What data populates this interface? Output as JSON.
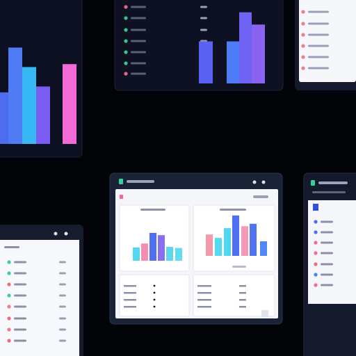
{
  "charts": [
    {
      "type": "bar",
      "values": [
        53,
        99,
        79,
        59,
        82
      ],
      "colors": [
        "#4d6cf0",
        "#4f7bf5",
        "#37b8f2",
        "#7b5cf0",
        "#f26ad6"
      ]
    },
    {
      "type": "bar",
      "values": [
        55,
        55,
        93,
        77
      ],
      "colors": [
        "#5a62f2",
        "#4f7bf5",
        "#6f63f4",
        "#8a63f0"
      ]
    },
    {
      "type": "bar",
      "values": [
        24,
        31,
        50,
        46,
        25,
        23
      ],
      "colors": [
        "#4fd8f0",
        "#f58db2",
        "#4f6ff2",
        "#8a6ef2",
        "#5fd6f0",
        "#62dcf2"
      ]
    },
    {
      "type": "bar",
      "values": [
        44,
        37,
        57,
        83,
        61,
        66,
        30
      ],
      "colors": [
        "#f59aaa",
        "#52dcf0",
        "#52d6ee",
        "#4f6ff2",
        "#f39ab8",
        "#4f73f3",
        "#4f88f3"
      ]
    }
  ]
}
